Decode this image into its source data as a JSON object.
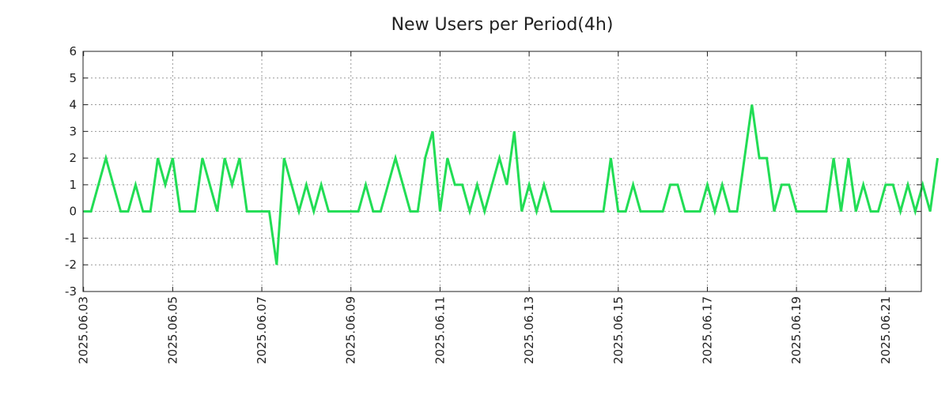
{
  "chart_data": {
    "type": "line",
    "title": "New Users per Period(4h)",
    "xlabel": "",
    "ylabel": "",
    "ylim": [
      -3,
      6
    ],
    "y_ticks": [
      "6",
      "5",
      "4",
      "3",
      "2",
      "1",
      "0",
      "-1",
      "-2",
      "-3"
    ],
    "x_ticks": [
      {
        "label": "2025.06.03",
        "index": 0
      },
      {
        "label": "2025.06.05",
        "index": 12
      },
      {
        "label": "2025.06.07",
        "index": 24
      },
      {
        "label": "2025.06.09",
        "index": 36
      },
      {
        "label": "2025.06.11",
        "index": 48
      },
      {
        "label": "2025.06.13",
        "index": 60
      },
      {
        "label": "2025.06.15",
        "index": 72
      },
      {
        "label": "2025.06.17",
        "index": 84
      },
      {
        "label": "2025.06.19",
        "index": 96
      },
      {
        "label": "2025.06.21",
        "index": 108
      }
    ],
    "grid": true,
    "series": [
      {
        "name": "New Users",
        "color": "#22dd55",
        "values": [
          0,
          0,
          1,
          2,
          1,
          0,
          0,
          1,
          0,
          0,
          2,
          1,
          2,
          0,
          0,
          0,
          2,
          1,
          0,
          2,
          1,
          2,
          0,
          0,
          0,
          0,
          -2,
          2,
          1,
          0,
          1,
          0,
          1,
          0,
          0,
          0,
          0,
          0,
          1,
          0,
          0,
          1,
          2,
          1,
          0,
          0,
          2,
          3,
          0,
          2,
          1,
          1,
          0,
          1,
          0,
          1,
          2,
          1,
          3,
          0,
          1,
          0,
          1,
          0,
          0,
          0,
          0,
          0,
          0,
          0,
          0,
          2,
          0,
          0,
          1,
          0,
          0,
          0,
          0,
          1,
          1,
          0,
          0,
          0,
          1,
          0,
          1,
          0,
          0,
          2,
          4,
          2,
          2,
          0,
          1,
          1,
          0,
          0,
          0,
          0,
          0,
          2,
          0,
          2,
          0,
          1,
          0,
          0,
          1,
          1,
          0,
          1,
          0,
          1,
          0,
          2
        ]
      }
    ]
  }
}
